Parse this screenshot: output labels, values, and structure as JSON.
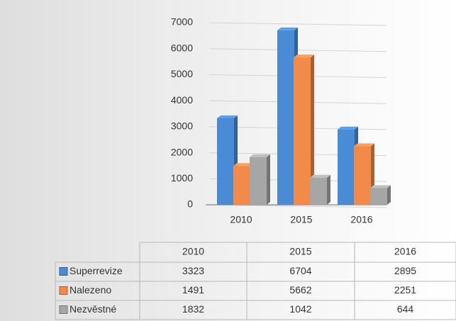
{
  "chart_data": {
    "type": "bar3d",
    "categories": [
      "2010",
      "2015",
      "2016"
    ],
    "series": [
      {
        "name": "Superrevize",
        "color": "#4a8bd6",
        "values": [
          3323,
          6704,
          2895
        ]
      },
      {
        "name": "Nalezeno",
        "color": "#f28a4a",
        "values": [
          1491,
          5662,
          2251
        ]
      },
      {
        "name": "Nezvěstné",
        "color": "#a6a6a6",
        "values": [
          1832,
          1042,
          644
        ]
      }
    ],
    "ylim": [
      0,
      7000
    ],
    "yticks": [
      0,
      1000,
      2000,
      3000,
      4000,
      5000,
      6000,
      7000
    ],
    "grid": true,
    "data_table": true
  }
}
